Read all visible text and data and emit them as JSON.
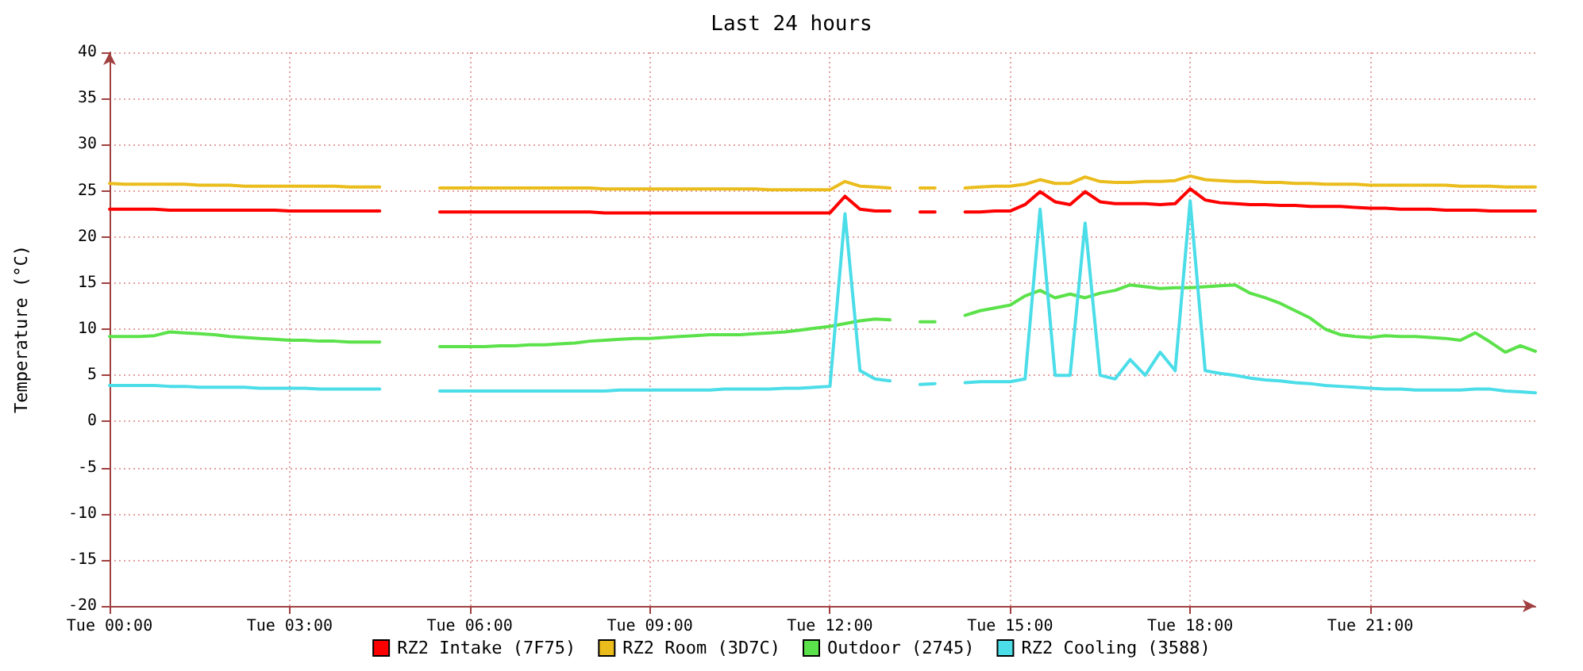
{
  "chart_data": {
    "type": "line",
    "title": "Last 24 hours",
    "ylabel": "Temperature (°C)",
    "categories": [
      "Tue 00:00",
      null,
      null,
      null,
      null,
      null,
      null,
      null,
      null,
      null,
      null,
      null,
      "Tue 03:00",
      null,
      null,
      null,
      null,
      null,
      null,
      null,
      null,
      null,
      null,
      null,
      "Tue 06:00",
      null,
      null,
      null,
      null,
      null,
      null,
      null,
      null,
      null,
      null,
      null,
      "Tue 09:00",
      null,
      null,
      null,
      null,
      null,
      null,
      null,
      null,
      null,
      null,
      null,
      "Tue 12:00",
      null,
      null,
      null,
      null,
      null,
      null,
      null,
      null,
      null,
      null,
      null,
      "Tue 15:00",
      null,
      null,
      null,
      null,
      null,
      null,
      null,
      null,
      null,
      null,
      null,
      "Tue 18:00",
      null,
      null,
      null,
      null,
      null,
      null,
      null,
      null,
      null,
      null,
      null,
      "Tue 21:00",
      null,
      null,
      null,
      null,
      null,
      null,
      null,
      null,
      null,
      null,
      null
    ],
    "series": [
      {
        "name": "RZ2 Intake (7F75)",
        "color": "#ff0000",
        "values": [
          23.0,
          23.0,
          23.0,
          23.0,
          22.9,
          22.9,
          22.9,
          22.9,
          22.9,
          22.9,
          22.9,
          22.9,
          22.8,
          22.8,
          22.8,
          22.8,
          22.8,
          22.8,
          22.8,
          null,
          null,
          null,
          22.7,
          22.7,
          22.7,
          22.7,
          22.7,
          22.7,
          22.7,
          22.7,
          22.7,
          22.7,
          22.7,
          22.6,
          22.6,
          22.6,
          22.6,
          22.6,
          22.6,
          22.6,
          22.6,
          22.6,
          22.6,
          22.6,
          22.6,
          22.6,
          22.6,
          22.6,
          22.6,
          24.4,
          23.0,
          22.8,
          22.8,
          null,
          22.7,
          22.7,
          null,
          22.7,
          22.7,
          22.8,
          22.8,
          23.5,
          24.9,
          23.8,
          23.5,
          24.9,
          23.8,
          23.6,
          23.6,
          23.6,
          23.5,
          23.6,
          25.2,
          24.0,
          23.7,
          23.6,
          23.5,
          23.5,
          23.4,
          23.4,
          23.3,
          23.3,
          23.3,
          23.2,
          23.1,
          23.1,
          23.0,
          23.0,
          23.0,
          22.9,
          22.9,
          22.9,
          22.8,
          22.8,
          22.8,
          22.8
        ]
      },
      {
        "name": "RZ2 Room (3D7C)",
        "color": "#eabc1c",
        "values": [
          25.8,
          25.7,
          25.7,
          25.7,
          25.7,
          25.7,
          25.6,
          25.6,
          25.6,
          25.5,
          25.5,
          25.5,
          25.5,
          25.5,
          25.5,
          25.5,
          25.4,
          25.4,
          25.4,
          null,
          null,
          null,
          25.3,
          25.3,
          25.3,
          25.3,
          25.3,
          25.3,
          25.3,
          25.3,
          25.3,
          25.3,
          25.3,
          25.2,
          25.2,
          25.2,
          25.2,
          25.2,
          25.2,
          25.2,
          25.2,
          25.2,
          25.2,
          25.2,
          25.1,
          25.1,
          25.1,
          25.1,
          25.1,
          26.0,
          25.5,
          25.4,
          25.3,
          null,
          25.3,
          25.3,
          null,
          25.3,
          25.4,
          25.5,
          25.5,
          25.7,
          26.2,
          25.8,
          25.8,
          26.5,
          26.0,
          25.9,
          25.9,
          26.0,
          26.0,
          26.1,
          26.6,
          26.2,
          26.1,
          26.0,
          26.0,
          25.9,
          25.9,
          25.8,
          25.8,
          25.7,
          25.7,
          25.7,
          25.6,
          25.6,
          25.6,
          25.6,
          25.6,
          25.6,
          25.5,
          25.5,
          25.5,
          25.4,
          25.4,
          25.4
        ]
      },
      {
        "name": "Outdoor (2745)",
        "color": "#5be24a",
        "values": [
          9.2,
          9.2,
          9.2,
          9.3,
          9.7,
          9.6,
          9.5,
          9.4,
          9.2,
          9.1,
          9.0,
          8.9,
          8.8,
          8.8,
          8.7,
          8.7,
          8.6,
          8.6,
          8.6,
          null,
          null,
          null,
          8.1,
          8.1,
          8.1,
          8.1,
          8.2,
          8.2,
          8.3,
          8.3,
          8.4,
          8.5,
          8.7,
          8.8,
          8.9,
          9.0,
          9.0,
          9.1,
          9.2,
          9.3,
          9.4,
          9.4,
          9.4,
          9.5,
          9.6,
          9.7,
          9.9,
          10.1,
          10.3,
          10.6,
          10.9,
          11.1,
          11.0,
          null,
          10.8,
          10.8,
          null,
          11.5,
          12.0,
          12.3,
          12.6,
          13.6,
          14.2,
          13.4,
          13.8,
          13.4,
          13.9,
          14.2,
          14.8,
          14.6,
          14.4,
          14.5,
          14.5,
          14.6,
          14.7,
          14.8,
          13.9,
          13.4,
          12.8,
          12.0,
          11.2,
          10.0,
          9.4,
          9.2,
          9.1,
          9.3,
          9.2,
          9.2,
          9.1,
          9.0,
          8.8,
          9.6,
          8.6,
          7.5,
          8.2,
          7.6
        ]
      },
      {
        "name": "RZ2 Cooling (3588)",
        "color": "#4bdde8",
        "values": [
          3.9,
          3.9,
          3.9,
          3.9,
          3.8,
          3.8,
          3.7,
          3.7,
          3.7,
          3.7,
          3.6,
          3.6,
          3.6,
          3.6,
          3.5,
          3.5,
          3.5,
          3.5,
          3.5,
          null,
          null,
          null,
          3.3,
          3.3,
          3.3,
          3.3,
          3.3,
          3.3,
          3.3,
          3.3,
          3.3,
          3.3,
          3.3,
          3.3,
          3.4,
          3.4,
          3.4,
          3.4,
          3.4,
          3.4,
          3.4,
          3.5,
          3.5,
          3.5,
          3.5,
          3.6,
          3.6,
          3.7,
          3.8,
          22.5,
          5.5,
          4.6,
          4.4,
          null,
          4.0,
          4.1,
          null,
          4.2,
          4.3,
          4.3,
          4.3,
          4.6,
          23.0,
          5.0,
          5.0,
          21.5,
          5.0,
          4.6,
          6.7,
          5.0,
          7.5,
          5.5,
          23.9,
          5.5,
          5.2,
          5.0,
          4.7,
          4.5,
          4.4,
          4.2,
          4.1,
          3.9,
          3.8,
          3.7,
          3.6,
          3.5,
          3.5,
          3.4,
          3.4,
          3.4,
          3.4,
          3.5,
          3.5,
          3.3,
          3.2,
          3.1
        ]
      }
    ],
    "ylim": [
      -20,
      40
    ],
    "yticks": [
      -20,
      -15,
      -10,
      -5,
      0,
      5,
      10,
      15,
      20,
      25,
      30,
      35,
      40
    ],
    "grid": true,
    "legend": "bottom",
    "marker": "none",
    "line_style": "solid"
  }
}
